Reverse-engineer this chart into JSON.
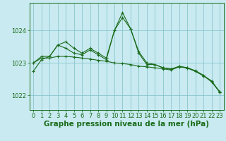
{
  "bg_color": "#c8eaf0",
  "grid_color": "#80c0c8",
  "line_color": "#1a6b1a",
  "xlabel": "Graphe pression niveau de la mer (hPa)",
  "xlabel_fontsize": 7.5,
  "tick_fontsize": 6,
  "ylim": [
    1021.55,
    1024.85
  ],
  "xlim": [
    -0.5,
    23.5
  ],
  "yticks": [
    1022,
    1023,
    1024
  ],
  "xticks": [
    0,
    1,
    2,
    3,
    4,
    5,
    6,
    7,
    8,
    9,
    10,
    11,
    12,
    13,
    14,
    15,
    16,
    17,
    18,
    19,
    20,
    21,
    22,
    23
  ],
  "series": [
    {
      "x": [
        0,
        1,
        2,
        3,
        4,
        5,
        6,
        7,
        8,
        9,
        10,
        11,
        12,
        13,
        14,
        15,
        16,
        17,
        18,
        19,
        20,
        21,
        22,
        23
      ],
      "y": [
        1022.75,
        1023.1,
        1023.2,
        1023.55,
        1023.65,
        1023.45,
        1023.3,
        1023.45,
        1023.3,
        1023.15,
        1024.0,
        1024.55,
        1024.05,
        1023.3,
        1022.95,
        1022.95,
        1022.85,
        1022.82,
        1022.88,
        1022.85,
        1022.76,
        1022.62,
        1022.42,
        1022.12
      ]
    },
    {
      "x": [
        0,
        1,
        2,
        3,
        4,
        5,
        6,
        7,
        8,
        9,
        10,
        11,
        12,
        13,
        14,
        15,
        16,
        17,
        18,
        19,
        20,
        21,
        22,
        23
      ],
      "y": [
        1023.0,
        1023.2,
        1023.2,
        1023.55,
        1023.45,
        1023.3,
        1023.25,
        1023.4,
        1023.25,
        1023.1,
        1024.0,
        1024.4,
        1024.05,
        1023.35,
        1023.0,
        1022.95,
        1022.85,
        1022.8,
        1022.9,
        1022.85,
        1022.75,
        1022.6,
        1022.45,
        1022.1
      ]
    },
    {
      "x": [
        0,
        1,
        2,
        3,
        4,
        5,
        6,
        7,
        8,
        9,
        10,
        11,
        12,
        13,
        14,
        15,
        16,
        17,
        18,
        19,
        20,
        21,
        22,
        23
      ],
      "y": [
        1023.0,
        1023.15,
        1023.15,
        1023.2,
        1023.2,
        1023.18,
        1023.15,
        1023.12,
        1023.08,
        1023.05,
        1023.0,
        1022.98,
        1022.95,
        1022.9,
        1022.88,
        1022.85,
        1022.82,
        1022.78,
        1022.88,
        1022.84,
        1022.74,
        1022.6,
        1022.42,
        1022.1
      ]
    }
  ]
}
